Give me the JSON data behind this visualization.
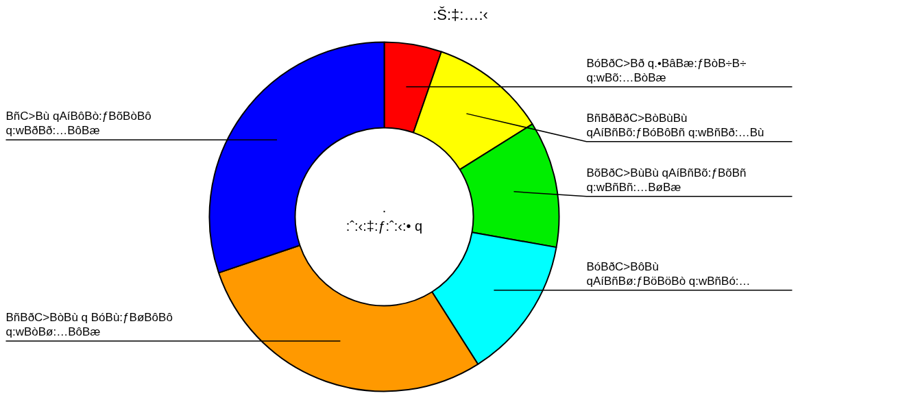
{
  "chart_data": {
    "type": "donut",
    "title": ":Š:‡:…:‹",
    "categories": [
      "BóBðC>Bð q.•BâBæ:ƒBòB÷B÷ q:wBõ:…BòBæ",
      "BñBðBðC>BòBùBù qAíBñBõ:ƒBóBôBñ q:wBñBð:…Bù",
      "BõBðC>BùBù qAíBñBõ:ƒBõBñ q:wBñBñ:…BøBæ",
      "BóBðC>BôBù qAíBñBø:ƒBöBöBò q:wBñBó:…",
      "BñBðC>BòBù q BóBù:ƒBøBôBô q:wBòBø:…BôBæ",
      "BñC>Bù qAíBôBò:ƒBõBòBô q:wBðBð:…BôBæ"
    ],
    "values": [
      5.3,
      10.8,
      11.7,
      13.2,
      28.8,
      30.2
    ],
    "colors": [
      "#ff0000",
      "#ffff00",
      "#00ee00",
      "#00ffff",
      "#ff9900",
      "#0000ff"
    ],
    "annotations": [
      ".\n:ˆ:‹:‡:ƒ:ˆ:‹:• q"
    ]
  }
}
